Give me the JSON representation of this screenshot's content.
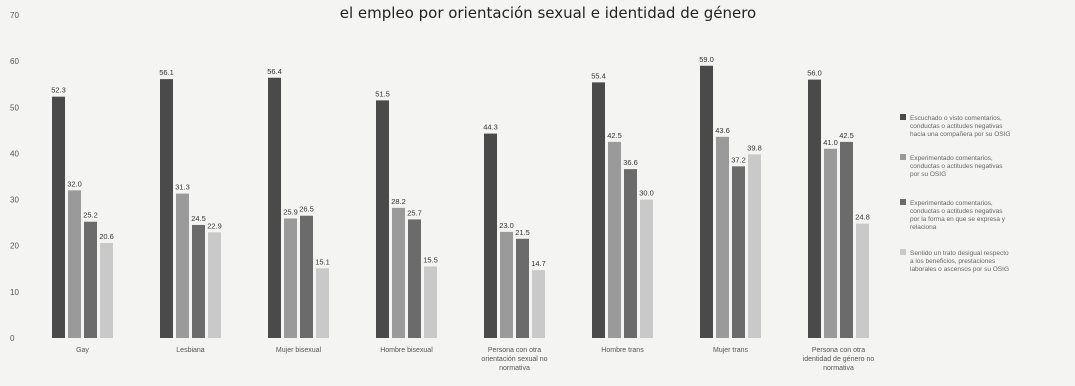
{
  "chart_data": {
    "type": "bar",
    "title": "el empleo por orientación sexual e identidad de género",
    "ylim": [
      0,
      70
    ],
    "yticks": [
      0,
      10,
      20,
      30,
      40,
      50,
      60,
      70
    ],
    "grid": false,
    "legend_position": "right",
    "categories": [
      "Gay",
      "Lesbiana",
      "Mujer bisexual",
      "Hombre bisexual",
      "Persona con otra orientación sexual no normativa",
      "Hombre trans",
      "Mujer trans",
      "Persona con otra identidad de género no normativa"
    ],
    "series": [
      {
        "name": "Escuchado o visto comentarios, conductas o actitudes negativas hacia una compañera por su OSIG",
        "color": "#4a4a4a",
        "values": [
          52.3,
          56.1,
          56.4,
          51.5,
          44.3,
          55.4,
          59.0,
          56.0
        ]
      },
      {
        "name": "Experimentado comentarios, conductas o actitudes negativas por su OSIG",
        "color": "#9a9a9a",
        "values": [
          32.0,
          31.3,
          25.9,
          28.2,
          23.0,
          42.5,
          43.6,
          41.0
        ]
      },
      {
        "name": "Experimentado comentarios, conductas o actitudes negativas por la forma en que se expresa y relaciona",
        "color": "#6b6b6b",
        "values": [
          25.2,
          24.5,
          26.5,
          25.7,
          21.5,
          36.6,
          37.2,
          42.5
        ]
      },
      {
        "name": "Sentido un trato desigual respecto a los beneficios, prestaciones laborales o ascensos por su OSIG",
        "color": "#c9c9c9",
        "values": [
          20.6,
          22.9,
          15.1,
          15.5,
          14.7,
          30.0,
          39.8,
          24.8
        ]
      }
    ]
  }
}
